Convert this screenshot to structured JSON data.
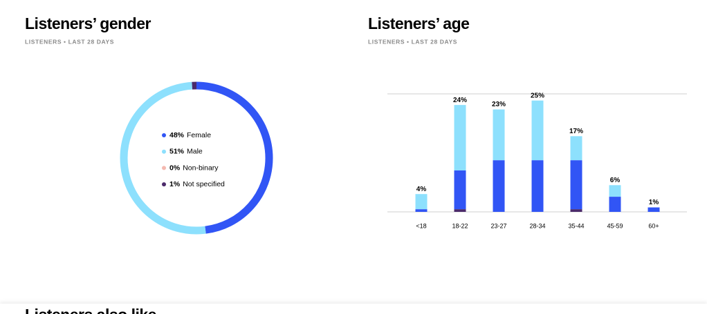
{
  "chart_data": [
    {
      "type": "donut",
      "title": "Listeners’ gender",
      "subtitle": "LISTENERS • LAST 28 DAYS",
      "categories": [
        "Female",
        "Male",
        "Non-binary",
        "Not specified"
      ],
      "values": [
        48,
        51,
        0,
        1
      ],
      "value_labels": [
        "48%",
        "51%",
        "0%",
        "1%"
      ],
      "colors": [
        "#3155f5",
        "#8de0fd",
        "#f4b9b0",
        "#4b2a6b"
      ]
    },
    {
      "type": "stacked-bar",
      "title": "Listeners’ age",
      "subtitle": "LISTENERS • LAST 28 DAYS",
      "categories": [
        "<18",
        "18-22",
        "23-27",
        "28-34",
        "35-44",
        "45-59",
        "60+"
      ],
      "series": [
        {
          "name": "Not specified",
          "color": "#4b2a6b",
          "values": [
            0,
            0.6,
            0,
            0,
            0.6,
            0,
            0
          ]
        },
        {
          "name": "Female",
          "color": "#3155f5",
          "values": [
            0.6,
            8.7,
            11.6,
            11.6,
            11,
            3.4,
            1
          ]
        },
        {
          "name": "Male",
          "color": "#8de0fd",
          "values": [
            3.4,
            14.7,
            11.4,
            13.4,
            5.4,
            2.6,
            0
          ]
        }
      ],
      "totals": [
        4,
        24,
        23,
        25,
        17,
        6,
        1
      ],
      "total_labels": [
        "4%",
        "24%",
        "23%",
        "25%",
        "17%",
        "6%",
        "1%"
      ],
      "ylim": [
        0,
        26.5
      ]
    }
  ],
  "section_heading": "Listeners also like"
}
